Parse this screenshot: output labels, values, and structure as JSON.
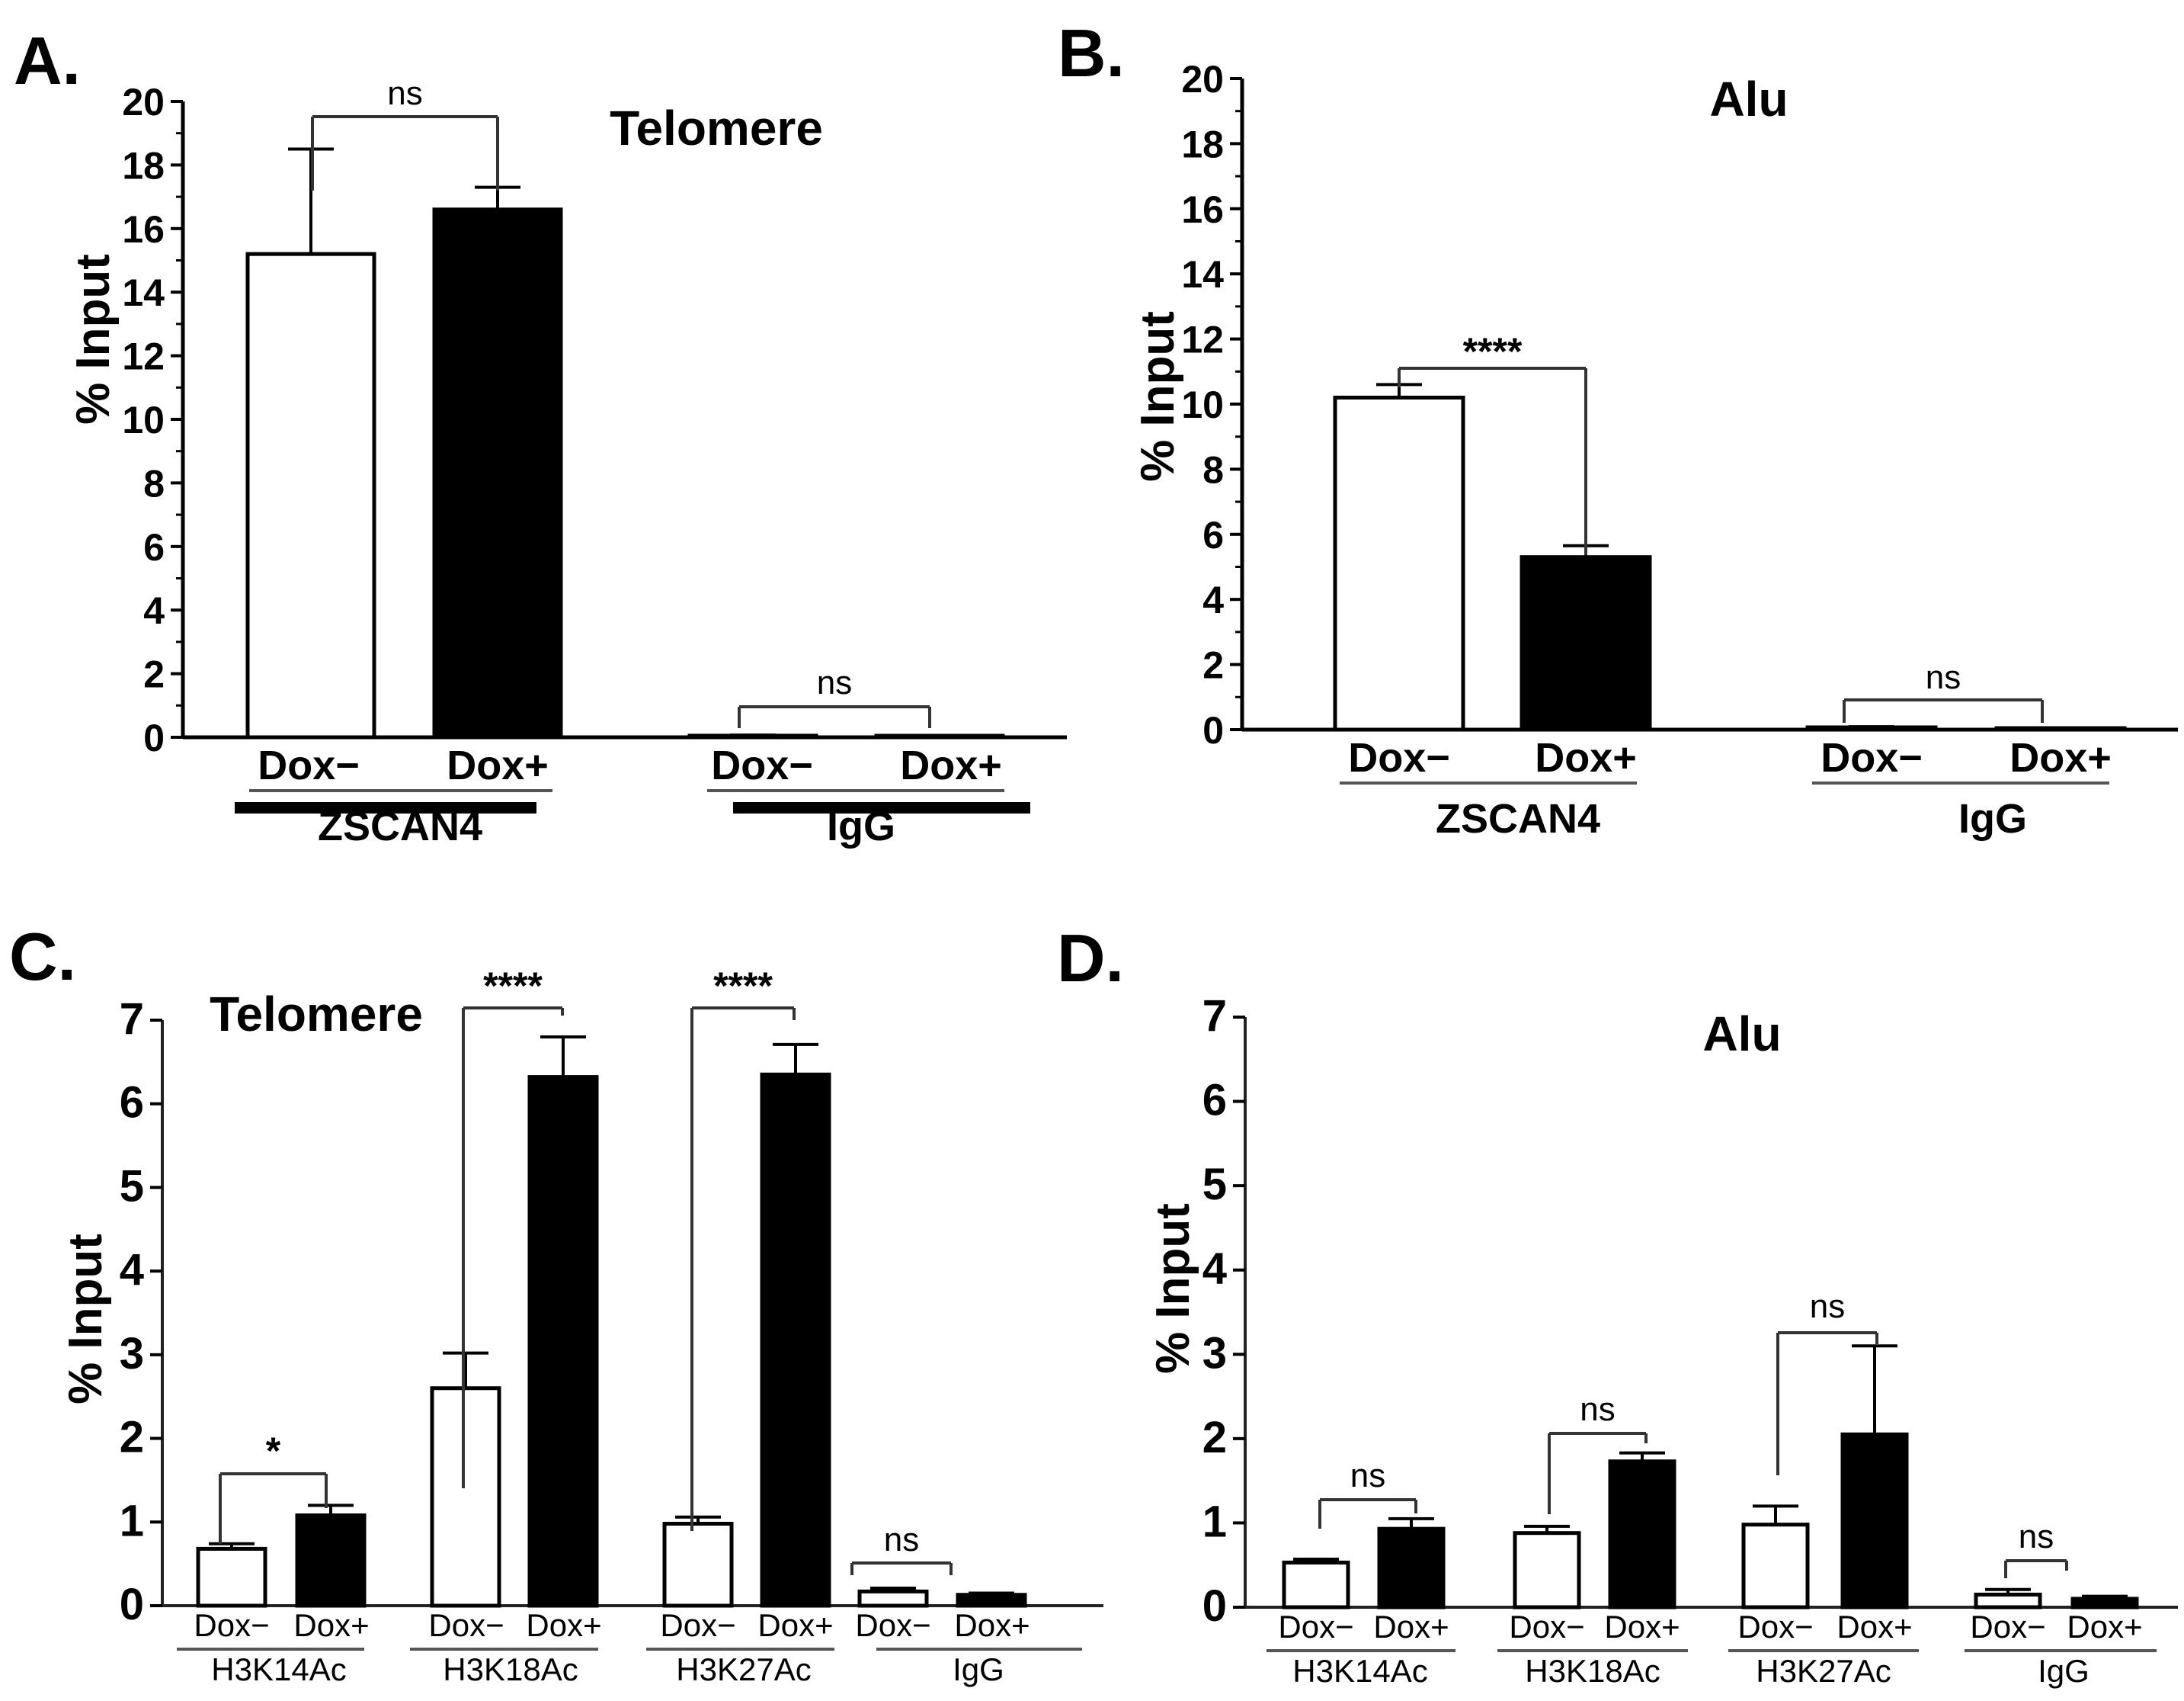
{
  "chart_data": [
    {
      "panel": "A.",
      "type": "bar",
      "title": "Telomere",
      "ylabel": "% Input",
      "xlabel": "",
      "ylim": [
        0,
        20
      ],
      "yticks": [
        0,
        2,
        4,
        6,
        8,
        10,
        12,
        14,
        16,
        18,
        20
      ],
      "tick_labels": [
        "Dox−",
        "Dox+"
      ],
      "groups": [
        {
          "name": "ZSCAN4",
          "values": [
            15.2,
            16.6
          ],
          "errors": [
            3.3,
            0.7
          ],
          "sig": "ns"
        },
        {
          "name": "IgG",
          "values": [
            0.05,
            0.03
          ],
          "errors": [
            0.02,
            0.02
          ],
          "sig": "ns"
        }
      ],
      "legend": {
        "entries": [
          {
            "label": "Dox−",
            "color": "#ffffff"
          },
          {
            "label": "Dox+",
            "color": "#000000"
          }
        ]
      }
    },
    {
      "panel": "B.",
      "type": "bar",
      "title": "Alu",
      "ylabel": "% Input",
      "xlabel": "",
      "ylim": [
        0,
        20
      ],
      "yticks": [
        0,
        2,
        4,
        6,
        8,
        10,
        12,
        14,
        16,
        18,
        20
      ],
      "tick_labels": [
        "Dox−",
        "Dox+"
      ],
      "groups": [
        {
          "name": "ZSCAN4",
          "values": [
            10.2,
            5.3
          ],
          "errors": [
            0.4,
            0.35
          ],
          "sig": "****"
        },
        {
          "name": "IgG",
          "values": [
            0.07,
            0.03
          ],
          "errors": [
            0.02,
            0.02
          ],
          "sig": "ns"
        }
      ],
      "legend": {
        "entries": [
          {
            "label": "Dox−",
            "color": "#ffffff"
          },
          {
            "label": "Dox+",
            "color": "#000000"
          }
        ]
      }
    },
    {
      "panel": "C.",
      "type": "bar",
      "title": "Telomere",
      "ylabel": "% Input",
      "xlabel": "",
      "ylim": [
        0,
        7
      ],
      "yticks": [
        0,
        1,
        2,
        3,
        4,
        5,
        6,
        7
      ],
      "tick_labels": [
        "Dox−",
        "Dox+"
      ],
      "groups": [
        {
          "name": "H3K14Ac",
          "values": [
            0.68,
            1.08
          ],
          "errors": [
            0.06,
            0.12
          ],
          "sig": "*"
        },
        {
          "name": "H3K18Ac",
          "values": [
            2.6,
            6.32
          ],
          "errors": [
            0.42,
            0.48
          ],
          "sig": "****"
        },
        {
          "name": "H3K27Ac",
          "values": [
            0.98,
            6.35
          ],
          "errors": [
            0.08,
            0.36
          ],
          "sig": "****"
        },
        {
          "name": "IgG",
          "values": [
            0.17,
            0.13
          ],
          "errors": [
            0.04,
            0.02
          ],
          "sig": "ns"
        }
      ],
      "legend": {
        "entries": [
          {
            "label": "Dox−",
            "color": "#ffffff"
          },
          {
            "label": "Dox+",
            "color": "#000000"
          }
        ]
      }
    },
    {
      "panel": "D.",
      "type": "bar",
      "title": "Alu",
      "ylabel": "% Input",
      "xlabel": "",
      "ylim": [
        0,
        7
      ],
      "yticks": [
        0,
        1,
        2,
        3,
        4,
        5,
        6,
        7
      ],
      "tick_labels": [
        "Dox−",
        "Dox+"
      ],
      "groups": [
        {
          "name": "H3K14Ac",
          "values": [
            0.53,
            0.93
          ],
          "errors": [
            0.04,
            0.12
          ],
          "sig": "ns"
        },
        {
          "name": "H3K18Ac",
          "values": [
            0.88,
            1.73
          ],
          "errors": [
            0.08,
            0.1
          ],
          "sig": "ns"
        },
        {
          "name": "H3K27Ac",
          "values": [
            0.98,
            2.05
          ],
          "errors": [
            0.22,
            1.05
          ],
          "sig": "ns"
        },
        {
          "name": "IgG",
          "values": [
            0.15,
            0.1
          ],
          "errors": [
            0.06,
            0.03
          ],
          "sig": "ns"
        }
      ],
      "legend": {
        "entries": [
          {
            "label": "Dox−",
            "color": "#ffffff"
          },
          {
            "label": "Dox+",
            "color": "#000000"
          }
        ]
      }
    }
  ]
}
